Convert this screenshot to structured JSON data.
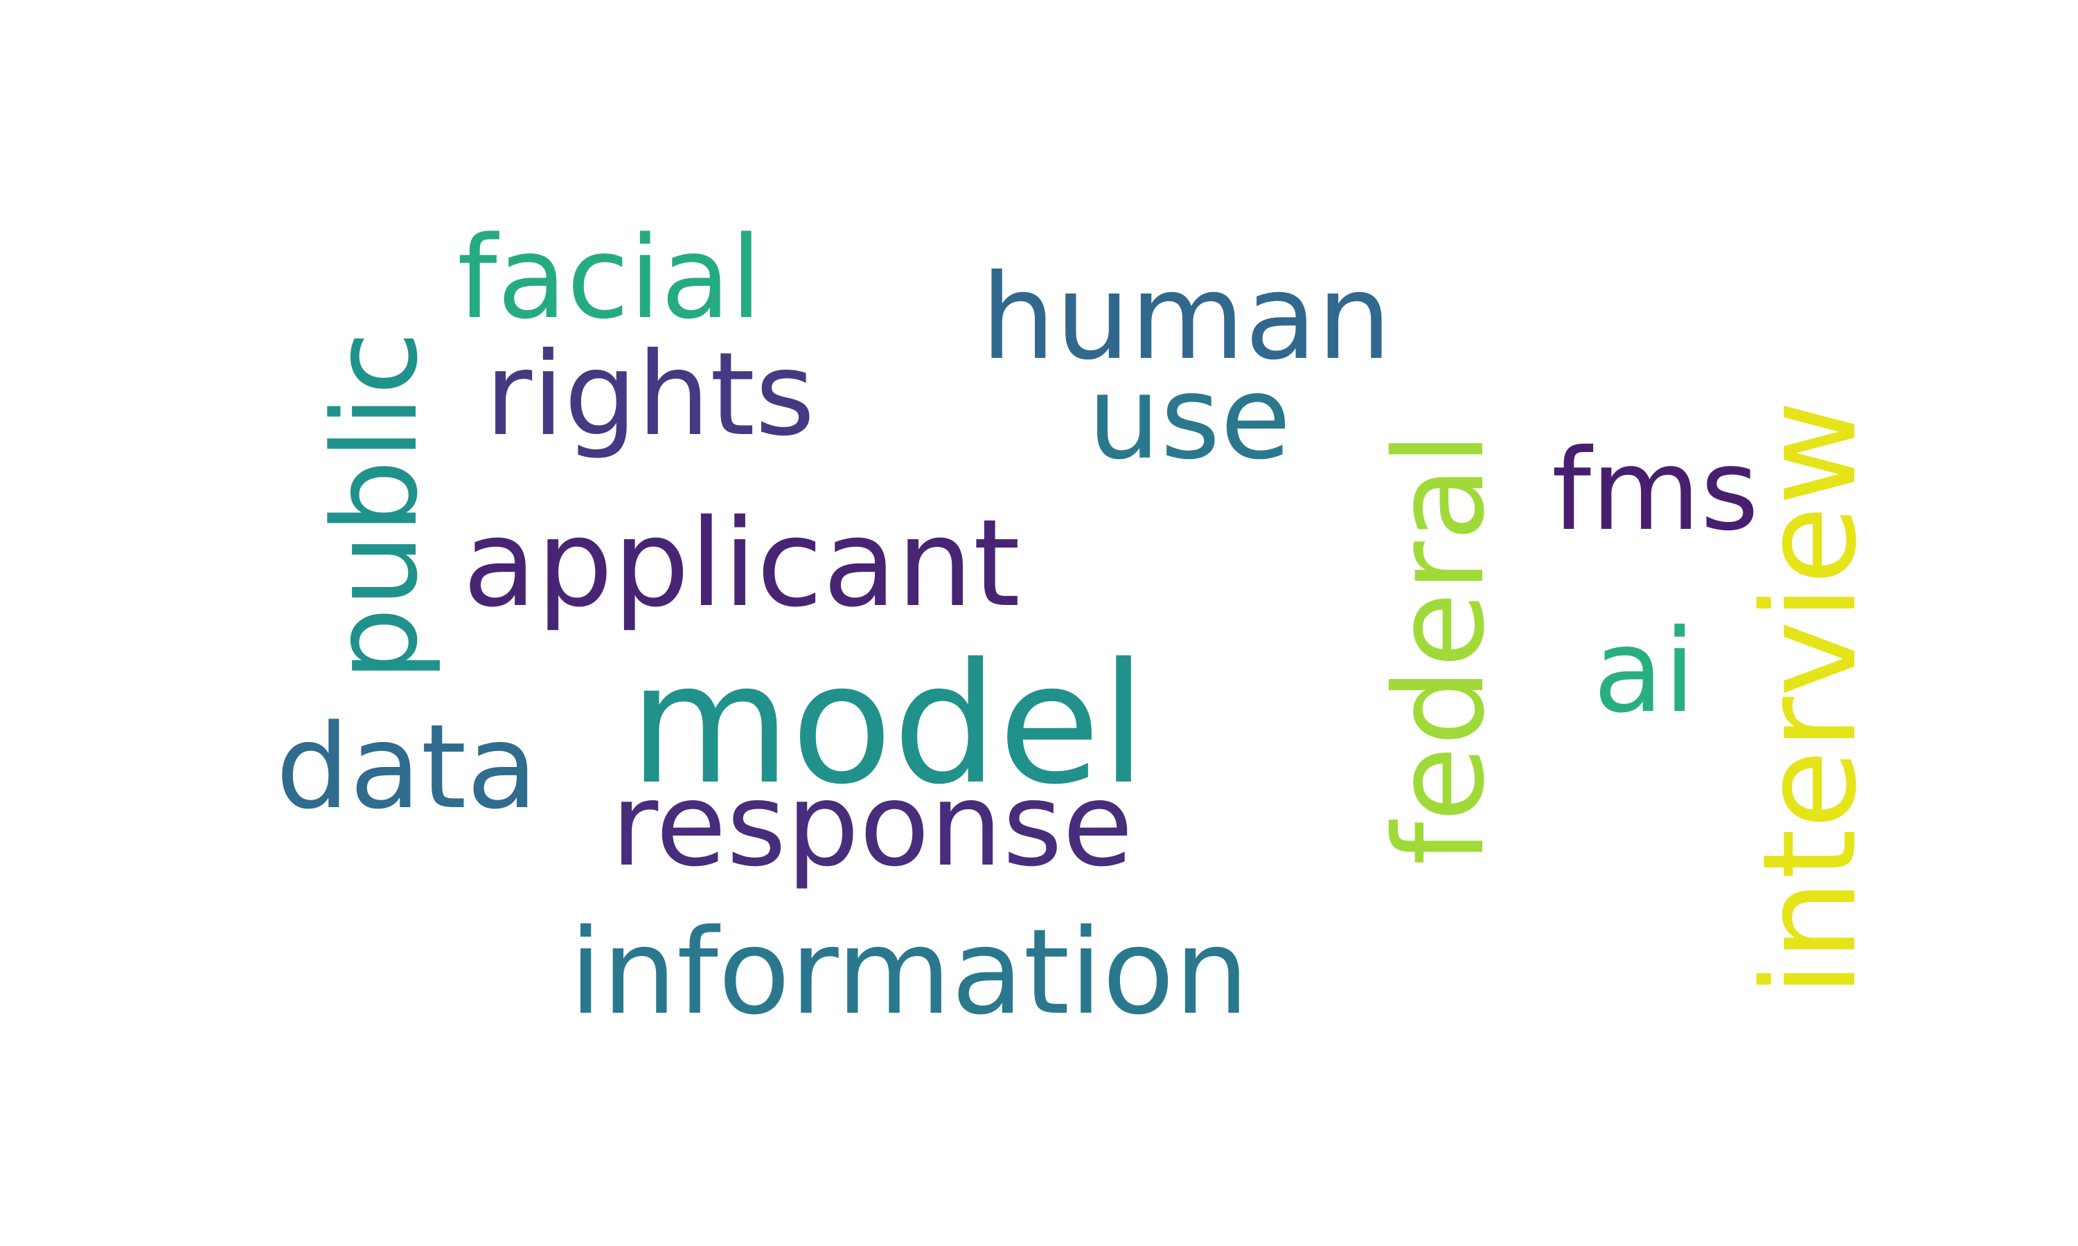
{
  "words": {
    "model": {
      "text": "model",
      "color": "#21918c"
    },
    "applicant": {
      "text": "applicant",
      "color": "#482475"
    },
    "information": {
      "text": "information",
      "color": "#2a788e"
    },
    "response": {
      "text": "response",
      "color": "#472d7b"
    },
    "rights": {
      "text": "rights",
      "color": "#443a83"
    },
    "human": {
      "text": "human",
      "color": "#31688e"
    },
    "facial": {
      "text": "facial",
      "color": "#25ab82"
    },
    "use": {
      "text": "use",
      "color": "#2a788e"
    },
    "data": {
      "text": "data",
      "color": "#2f6c8e"
    },
    "public": {
      "text": "public",
      "color": "#20928c"
    },
    "federal": {
      "text": "federal",
      "color": "#a0da39"
    },
    "interview": {
      "text": "interview",
      "color": "#e5e419"
    },
    "fms": {
      "text": "fms",
      "color": "#481f70"
    },
    "ai": {
      "text": "ai",
      "color": "#29af7f"
    }
  }
}
